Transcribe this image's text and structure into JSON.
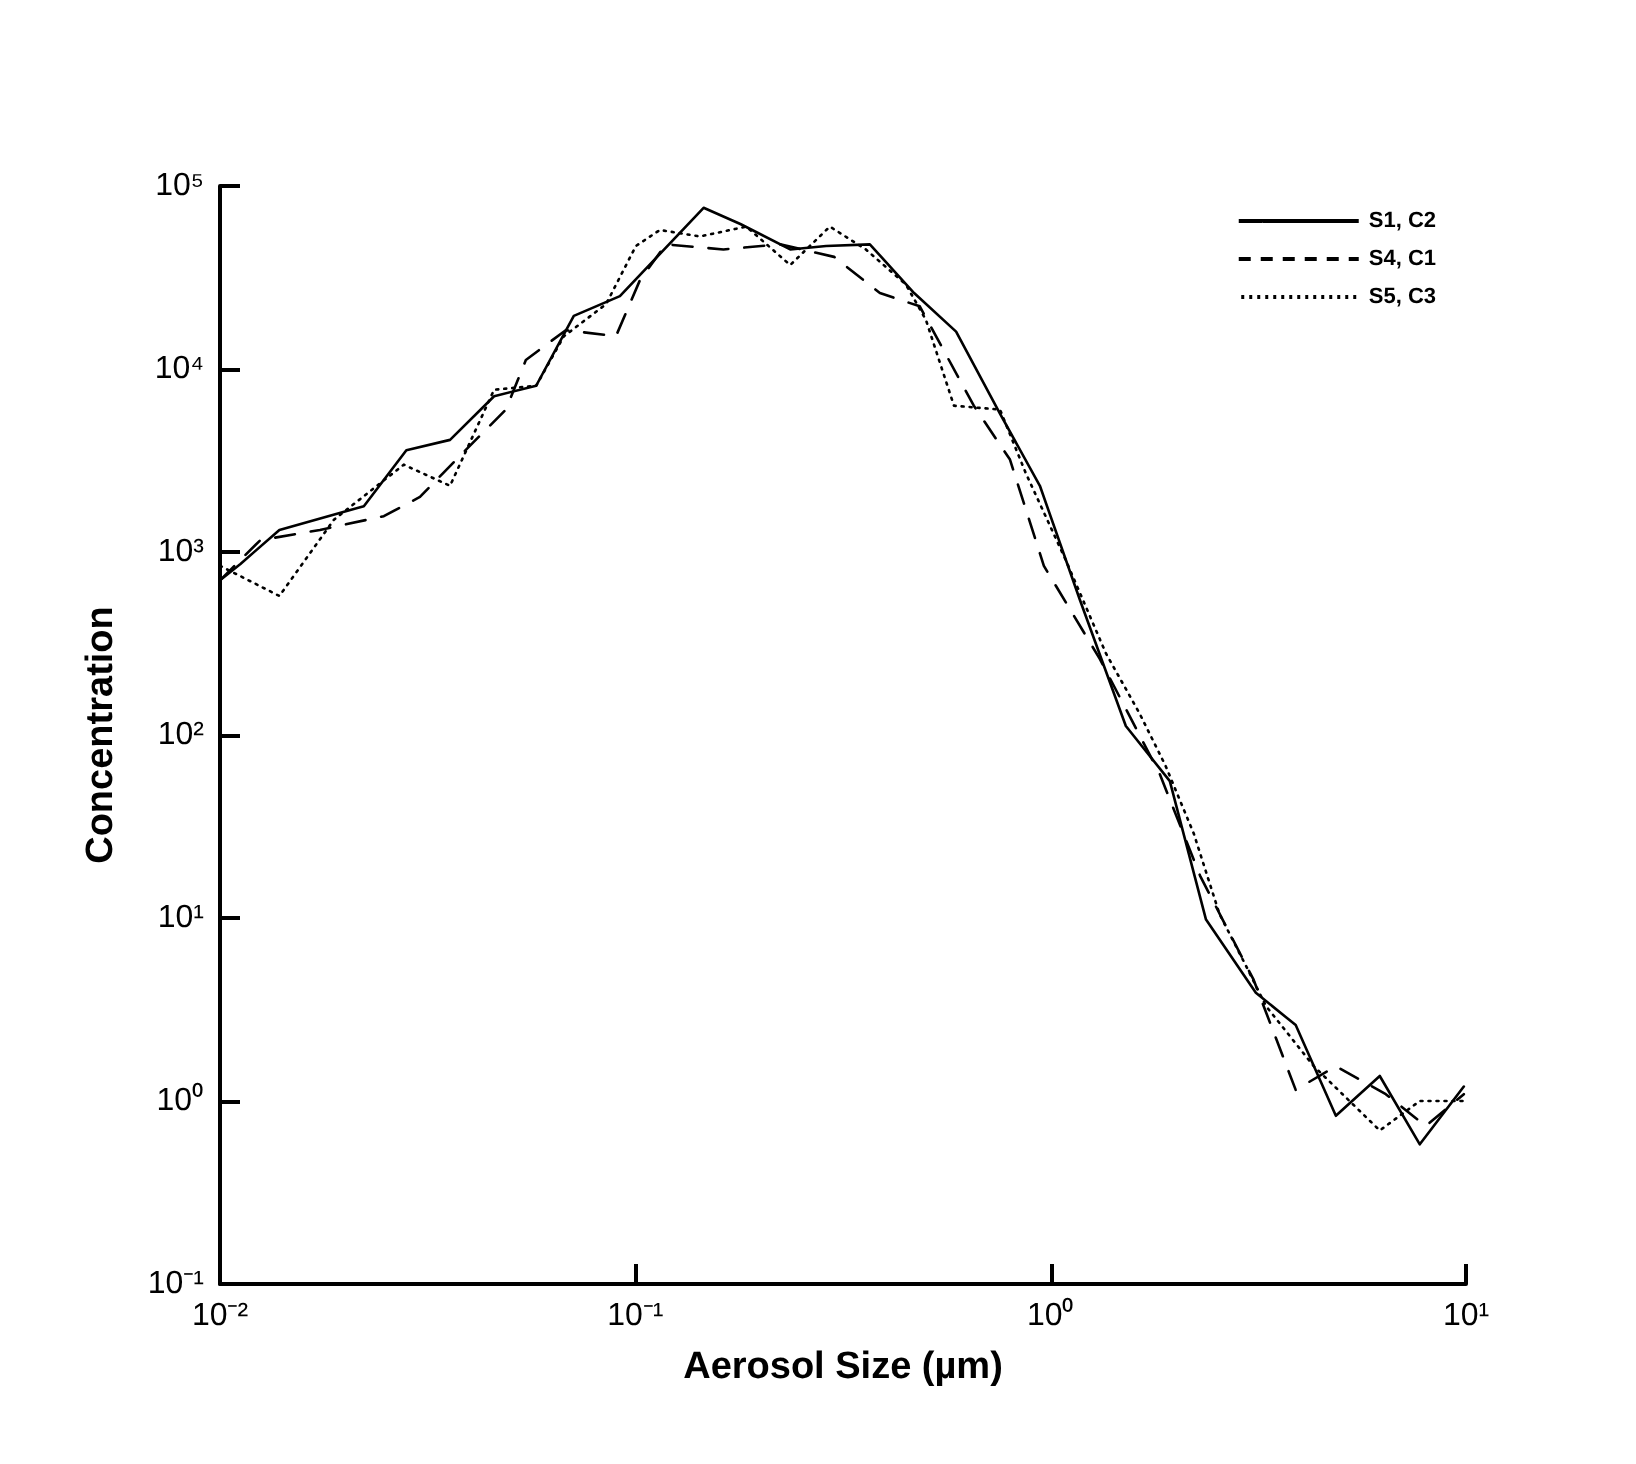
{
  "chart_data": {
    "type": "line",
    "xlabel": "Aerosol Size (µm)",
    "ylabel": "Concentration",
    "log": "xy",
    "grid": false,
    "legend": "top right",
    "marker": "none",
    "xlim": [
      0.01,
      10
    ],
    "xticks": [
      {
        "value": 0.01,
        "label": "10⁻²"
      },
      {
        "value": 0.1,
        "label": "10⁻¹"
      },
      {
        "value": 1,
        "label": "10⁰"
      },
      {
        "value": 10,
        "label": "10¹"
      }
    ],
    "ylim": [
      0.1,
      100000
    ],
    "yticks": [
      {
        "value": 0.1,
        "label": "10⁻¹"
      },
      {
        "value": 1,
        "label": "10⁰"
      },
      {
        "value": 10,
        "label": "10¹"
      },
      {
        "value": 100,
        "label": "10²"
      },
      {
        "value": 1000,
        "label": "10³"
      },
      {
        "value": 10000,
        "label": "10⁴"
      },
      {
        "value": 100000,
        "label": "10⁵"
      }
    ],
    "series": [
      {
        "name": "S1, C2",
        "color": "#000000",
        "line_style": "solid",
        "x": [
          0.01,
          0.0112,
          0.0139,
          0.0222,
          0.0281,
          0.0358,
          0.0457,
          0.0577,
          0.0711,
          0.0918,
          0.146,
          0.179,
          0.236,
          0.288,
          0.367,
          0.469,
          0.592,
          0.755,
          0.942,
          1.175,
          1.517,
          1.936,
          2.366,
          3.119,
          3.89,
          4.86,
          6.2,
          7.74,
          9.88
        ],
        "values": [
          700,
          860,
          1320,
          1780,
          3600,
          4100,
          7100,
          8100,
          19500,
          25000,
          76000,
          62000,
          45000,
          47000,
          48000,
          26000,
          16000,
          5700,
          2300,
          550,
          112,
          56,
          9.8,
          3.9,
          2.6,
          0.83,
          1.37,
          0.58,
          1.2
        ]
      },
      {
        "name": "S4, C1",
        "color": "#000000",
        "line_style": "dashed",
        "x": [
          0.01,
          0.0125,
          0.0174,
          0.0248,
          0.0303,
          0.0378,
          0.0488,
          0.0545,
          0.068,
          0.0898,
          0.1026,
          0.1185,
          0.163,
          0.223,
          0.301,
          0.388,
          0.484,
          0.653,
          0.798,
          0.963,
          1.314,
          1.832,
          2.29,
          3.08,
          3.89,
          4.86,
          6.41,
          8.0,
          9.88
        ],
        "values": [
          700,
          1160,
          1320,
          1570,
          2000,
          3350,
          6000,
          11200,
          16300,
          15100,
          30600,
          48000,
          45000,
          48000,
          41000,
          26000,
          22000,
          6300,
          3200,
          840,
          260,
          61,
          17,
          4.6,
          1.15,
          1.55,
          1.09,
          0.73,
          1.09
        ]
      },
      {
        "name": "S5, C3",
        "color": "#000000",
        "line_style": "dotted",
        "x": [
          0.01,
          0.0139,
          0.0188,
          0.0277,
          0.0358,
          0.0457,
          0.0577,
          0.0673,
          0.085,
          0.1003,
          0.1146,
          0.143,
          0.185,
          0.236,
          0.294,
          0.359,
          0.448,
          0.501,
          0.585,
          0.755,
          0.871,
          1.088,
          1.358,
          1.64,
          1.89,
          2.21,
          2.55,
          2.95,
          3.3,
          4.3,
          6.2,
          7.74,
          9.88
        ],
        "values": [
          840,
          575,
          1500,
          3000,
          2300,
          7700,
          8100,
          15100,
          22600,
          47000,
          57500,
          53000,
          60000,
          37000,
          60000,
          45000,
          29000,
          18500,
          6300,
          6000,
          2700,
          900,
          280,
          130,
          68,
          29,
          10.5,
          5.5,
          3.3,
          1.55,
          0.69,
          1.0,
          1.0
        ]
      }
    ]
  }
}
